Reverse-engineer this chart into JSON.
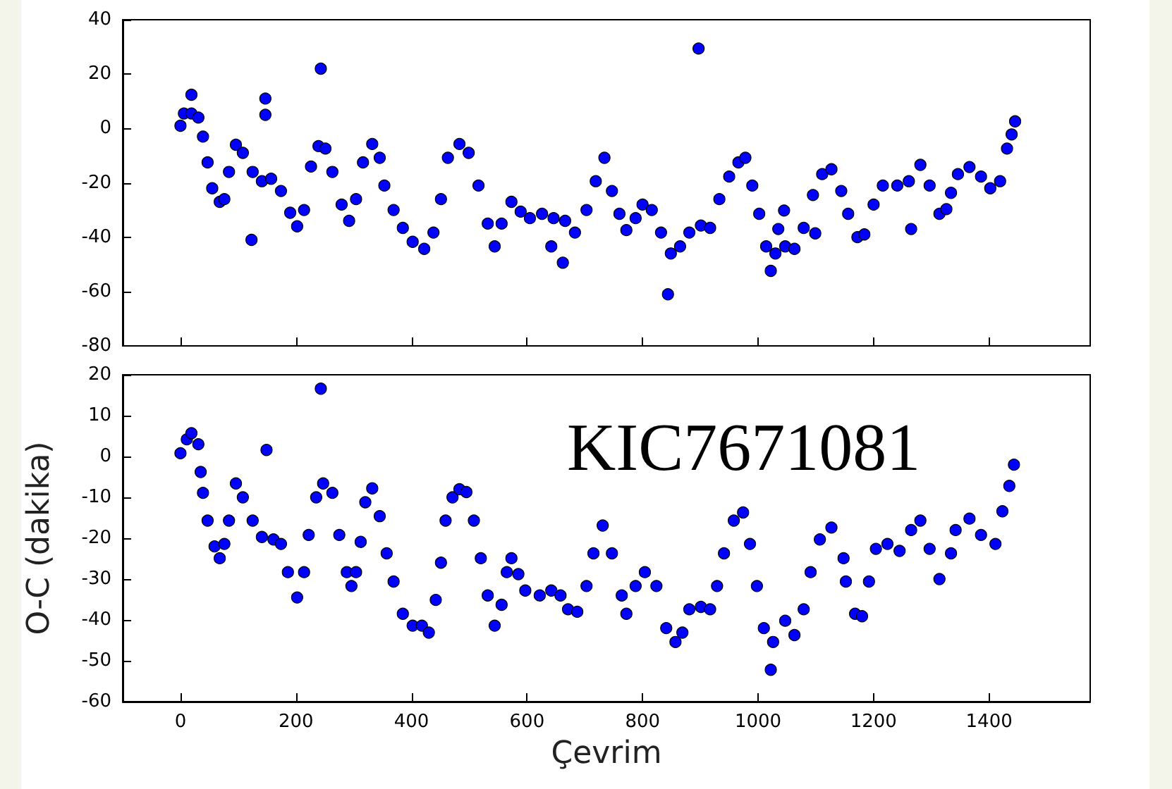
{
  "chart_data": [
    {
      "type": "scatter",
      "marker": "circle",
      "grid": false,
      "tick_labels": "y",
      "xlim": [
        -100,
        1575
      ],
      "xticks": [
        0,
        200,
        400,
        600,
        800,
        1000,
        1200,
        1400
      ],
      "ylim": [
        -80,
        40
      ],
      "yticks": [
        -80,
        -60,
        -40,
        -20,
        0,
        20,
        40
      ],
      "series": [
        {
          "color": "#0000ff",
          "x": [
            0,
            6,
            19,
            31,
            39,
            47,
            55,
            68,
            76,
            84,
            96,
            108,
            125,
            141,
            157,
            174,
            190,
            202,
            214,
            226,
            239,
            251,
            263,
            279,
            292,
            304,
            316,
            332,
            345,
            353,
            369,
            385,
            402,
            422,
            438,
            451,
            463,
            483,
            499,
            516,
            532,
            544,
            556,
            573,
            589,
            605,
            626,
            646,
            666,
            683,
            703,
            719,
            734,
            747,
            760,
            772,
            788,
            800,
            816,
            832,
            849,
            865,
            881,
            901,
            917,
            933,
            950,
            966,
            978,
            990,
            1002,
            1014,
            1030,
            1047,
            1063,
            1079,
            1095,
            1111,
            1127,
            1144,
            1156,
            1172,
            1184,
            1200,
            1216,
            1241,
            1261,
            1281,
            1297,
            1314,
            1326,
            1334,
            1346,
            1366,
            1386,
            1402,
            1419,
            1431,
            1439,
            1445,
            19,
            123,
            147,
            147,
            243,
            642,
            662,
            897,
            844,
            1022,
            1045,
            1035,
            1099,
            1265
          ],
          "values": [
            1,
            5.5,
            5.5,
            4,
            -3,
            -12.5,
            -22,
            -27,
            -26,
            -16,
            -6,
            -9,
            -16,
            -19.4,
            -18.5,
            -23,
            -31,
            -36,
            -30,
            -14,
            -6.5,
            -7.4,
            -16,
            -28,
            -34,
            -26,
            -12.5,
            -5.7,
            -10.8,
            -21,
            -30,
            -36.6,
            -41.7,
            -44.3,
            -38.3,
            -26,
            -10.8,
            -5.7,
            -9,
            -21,
            -35,
            -43.4,
            -35,
            -27,
            -30.6,
            -33,
            -31.4,
            -33,
            -34,
            -38.3,
            -30,
            -19.4,
            -10.8,
            -23,
            -31.4,
            -37.4,
            -33,
            -28,
            -30,
            -38.3,
            -46,
            -43.4,
            -38.3,
            -35.7,
            -36.6,
            -26,
            -17.7,
            -12.5,
            -10.8,
            -21,
            -31.4,
            -43.4,
            -46,
            -43.4,
            -44.3,
            -36.6,
            -24.5,
            -16.8,
            -15,
            -23,
            -31.4,
            -40,
            -39,
            -28,
            -21,
            -21,
            -19.4,
            -13.4,
            -21,
            -31.4,
            -29.7,
            -23.7,
            -16.8,
            -14.2,
            -17.7,
            -22,
            -19.4,
            -7.4,
            -2.2,
            2.6,
            12.4,
            -41,
            11,
            5,
            22,
            -43.4,
            -49.4,
            29.4,
            -61,
            -52.4,
            -30.2,
            -37,
            -38.6,
            -37
          ]
        }
      ]
    },
    {
      "type": "scatter",
      "marker": "circle",
      "grid": false,
      "xlabel": "Çevrim",
      "ylabel": "O-C (dakika)",
      "annotations": [
        "KIC7671081"
      ],
      "xlim": [
        -100,
        1575
      ],
      "xticks": [
        0,
        200,
        400,
        600,
        800,
        1000,
        1200,
        1400
      ],
      "ylim": [
        -60,
        20
      ],
      "yticks": [
        -60,
        -50,
        -40,
        -30,
        -20,
        -10,
        0,
        10,
        20
      ],
      "series": [
        {
          "color": "#0000ff",
          "x": [
            0,
            11,
            19,
            31,
            35,
            39,
            47,
            59,
            68,
            76,
            84,
            96,
            108,
            125,
            141,
            161,
            174,
            186,
            202,
            214,
            222,
            235,
            247,
            263,
            275,
            288,
            296,
            304,
            312,
            320,
            332,
            345,
            357,
            369,
            385,
            402,
            418,
            430,
            442,
            451,
            459,
            471,
            483,
            495,
            508,
            520,
            532,
            544,
            556,
            565,
            573,
            585,
            597,
            622,
            642,
            658,
            671,
            687,
            703,
            715,
            731,
            747,
            764,
            772,
            788,
            804,
            824,
            841,
            857,
            869,
            881,
            901,
            917,
            929,
            941,
            958,
            974,
            986,
            998,
            1010,
            1026,
            1047,
            1063,
            1079,
            1091,
            1107,
            1127,
            1148,
            1152,
            1168,
            1180,
            1192,
            1204,
            1224,
            1245,
            1265,
            1281,
            1297,
            1314,
            1334,
            1342,
            1366,
            1386,
            1411,
            1423,
            1435,
            1443,
            243,
            149,
            1022
          ],
          "values": [
            0.8,
            4.2,
            5.7,
            3,
            -3.8,
            -8.9,
            -15.7,
            -22,
            -24.9,
            -21.4,
            -15.7,
            -6.6,
            -10,
            -15.7,
            -19.7,
            -20.3,
            -21.4,
            -28.3,
            -34.5,
            -28.3,
            -19.2,
            -10,
            -6.6,
            -8.9,
            -19.2,
            -28.3,
            -31.7,
            -28.3,
            -20.9,
            -11.2,
            -7.8,
            -14.6,
            -23.7,
            -30.6,
            -38.5,
            -41.4,
            -41.4,
            -43.1,
            -35.1,
            -26,
            -15.7,
            -10,
            -8,
            -8.7,
            -15.7,
            -24.9,
            -34,
            -41.4,
            -36.3,
            -28.3,
            -24.9,
            -28.8,
            -32.8,
            -34,
            -32.8,
            -34,
            -37.4,
            -38,
            -31.7,
            -23.7,
            -16.9,
            -23.7,
            -34,
            -38.5,
            -31.7,
            -28.3,
            -31.7,
            -42,
            -45.4,
            -43.1,
            -37.4,
            -36.8,
            -37.4,
            -31.7,
            -23.7,
            -15.7,
            -13.7,
            -21.4,
            -31.7,
            -42,
            -45.4,
            -40.2,
            -43.7,
            -37.4,
            -28.3,
            -20.3,
            -17.4,
            -24.9,
            -30.6,
            -38.5,
            -39.1,
            -30.6,
            -22.6,
            -21.4,
            -23.1,
            -18,
            -15.7,
            -22.6,
            -30,
            -23.7,
            -18,
            -15.2,
            -19.2,
            -21.4,
            -13.4,
            -7.2,
            -2,
            16.6,
            1.6,
            -52.2
          ]
        }
      ]
    }
  ]
}
